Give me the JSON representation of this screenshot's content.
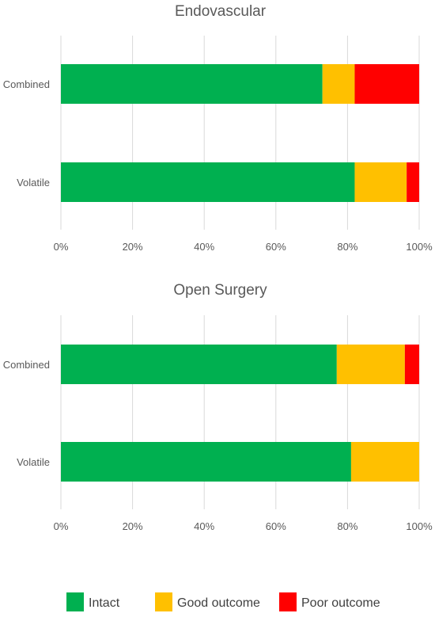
{
  "legend": [
    {
      "label": "Intact",
      "color": "#00B050"
    },
    {
      "label": "Good outcome",
      "color": "#FFC000"
    },
    {
      "label": "Poor outcome",
      "color": "#FF0000"
    }
  ],
  "chart_data": [
    {
      "type": "bar",
      "orientation": "horizontal",
      "stacked": "percent",
      "title": "Endovascular",
      "categories": [
        "Combined",
        "Volatile"
      ],
      "series": [
        {
          "name": "Intact",
          "color": "#00B050",
          "values": [
            73,
            82
          ]
        },
        {
          "name": "Good outcome",
          "color": "#FFC000",
          "values": [
            9,
            14.5
          ]
        },
        {
          "name": "Poor outcome",
          "color": "#FF0000",
          "values": [
            18,
            3.5
          ]
        }
      ],
      "xlim": [
        0,
        100
      ],
      "xticks": [
        "0%",
        "20%",
        "40%",
        "60%",
        "80%",
        "100%"
      ],
      "grid": true,
      "legend": "bottom"
    },
    {
      "type": "bar",
      "orientation": "horizontal",
      "stacked": "percent",
      "title": "Open Surgery",
      "categories": [
        "Combined",
        "Volatile"
      ],
      "series": [
        {
          "name": "Intact",
          "color": "#00B050",
          "values": [
            77,
            81
          ]
        },
        {
          "name": "Good outcome",
          "color": "#FFC000",
          "values": [
            19,
            19
          ]
        },
        {
          "name": "Poor outcome",
          "color": "#FF0000",
          "values": [
            4,
            0
          ]
        }
      ],
      "xlim": [
        0,
        100
      ],
      "xticks": [
        "0%",
        "20%",
        "40%",
        "60%",
        "80%",
        "100%"
      ],
      "grid": true,
      "legend": "bottom"
    }
  ]
}
